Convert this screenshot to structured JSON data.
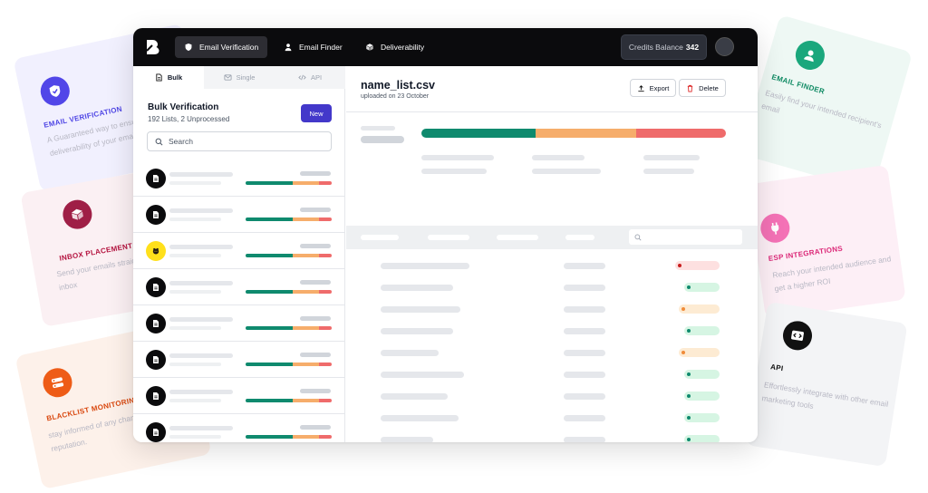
{
  "app": {
    "topbar": {
      "nav": [
        {
          "label": "Email Verification",
          "icon": "shield-check-icon",
          "active": true
        },
        {
          "label": "Email Finder",
          "icon": "user-icon",
          "active": false
        },
        {
          "label": "Deliverability",
          "icon": "box-icon",
          "active": false
        }
      ],
      "credits_label": "Credits Balance",
      "credits_value": "342"
    },
    "left": {
      "tabs": [
        {
          "label": "Bulk",
          "icon": "document-icon",
          "active": true
        },
        {
          "label": "Single",
          "icon": "mail-icon",
          "active": false
        },
        {
          "label": "API",
          "icon": "code-icon",
          "active": false
        }
      ],
      "title": "Bulk Verification",
      "subtitle": "192 Lists, 2 Unprocessed",
      "new_label": "New",
      "search_placeholder": "Search",
      "rows": [
        {
          "source": "document-icon"
        },
        {
          "source": "document-icon"
        },
        {
          "source": "mailchimp-logo"
        },
        {
          "source": "document-icon"
        },
        {
          "source": "document-icon"
        },
        {
          "source": "document-icon"
        },
        {
          "source": "document-icon"
        },
        {
          "source": "document-icon"
        }
      ]
    },
    "right": {
      "file_name": "name_list.csv",
      "file_date": "uploaded on 23 October",
      "export_label": "Export",
      "delete_label": "Delete",
      "status_colors": {
        "valid": "#0f8a6e",
        "risky": "#f6ad6b",
        "invalid": "#ef6b6b"
      },
      "row_status": [
        "invalid",
        "valid",
        "risky",
        "valid",
        "risky",
        "valid",
        "valid",
        "valid",
        "valid",
        "valid"
      ]
    }
  },
  "features": {
    "email_verification": {
      "title": "EMAIL VERIFICATION",
      "desc": "A Guaranteed way to ensure the deliverability of your emails",
      "icon": "shield-check-icon"
    },
    "inbox_placement": {
      "title": "INBOX PLACEMENT",
      "desc": "Send your emails straight to your recipient's inbox",
      "icon": "box-icon"
    },
    "blacklist_monitoring": {
      "title": "BLACKLIST MONITORING",
      "desc": "stay informed of any changes in your domain reputation.",
      "icon": "list-icon"
    },
    "email_finder": {
      "title": "EMAIL FINDER",
      "desc": "Easily find your intended recipient's email",
      "icon": "user-icon"
    },
    "esp_integrations": {
      "title": "ESP INTEGRATIONS",
      "desc": "Reach your intended audience and get a higher ROI",
      "icon": "plug-icon"
    },
    "api": {
      "title": "API",
      "desc": "Effortlessly integrate with other email marketing tools",
      "icon": "code-icon"
    }
  }
}
